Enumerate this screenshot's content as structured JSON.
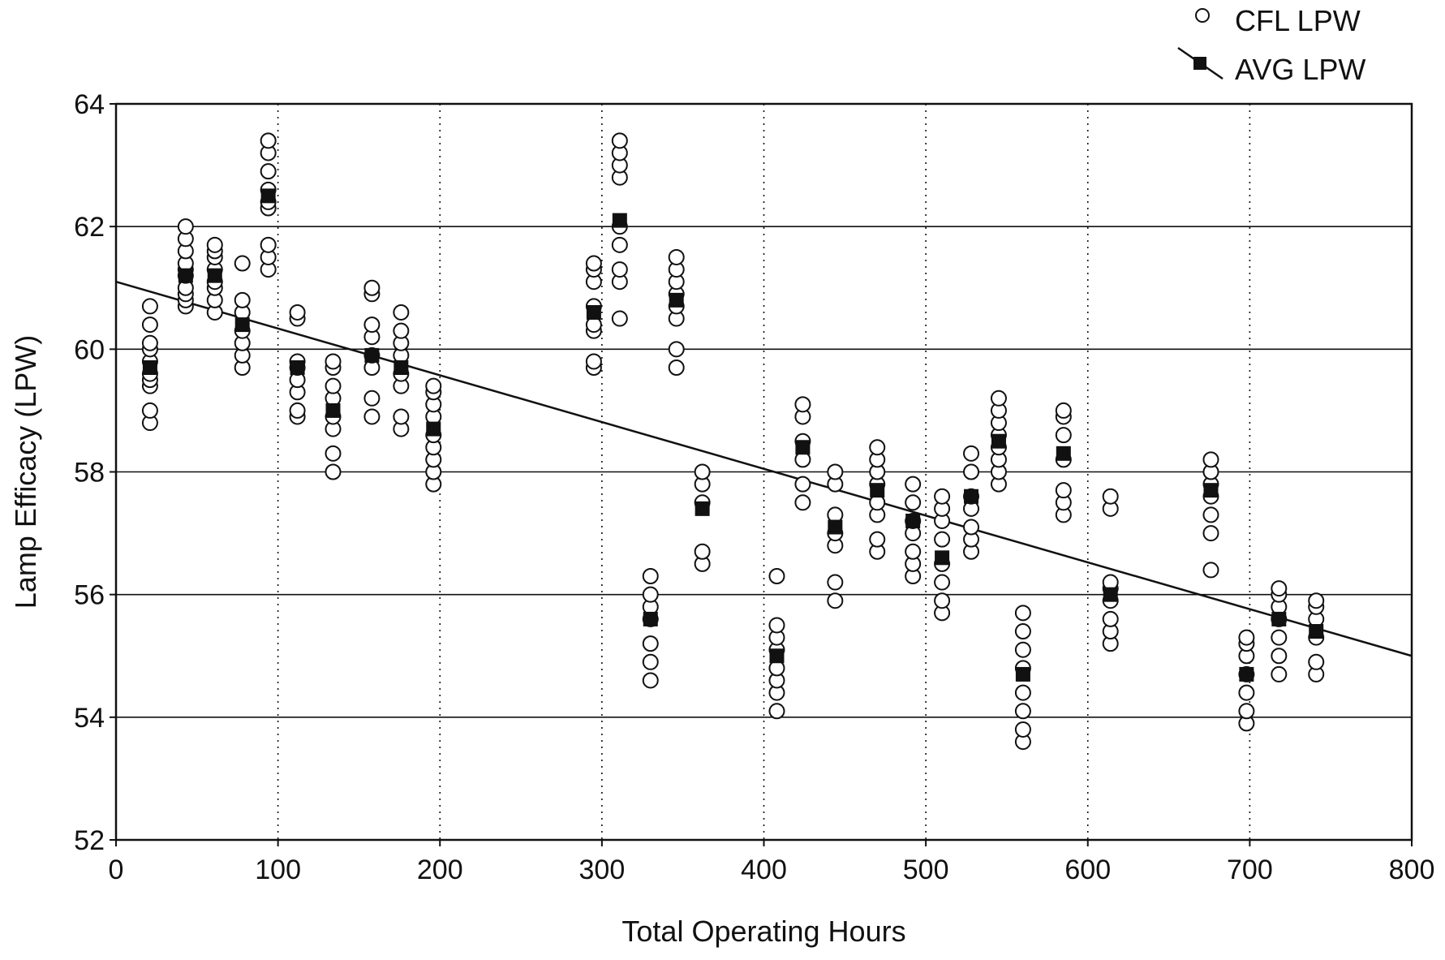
{
  "chart_data": {
    "type": "scatter",
    "title": "",
    "xlabel": "Total Operating Hours",
    "ylabel": "Lamp Efficacy (LPW)",
    "xlim": [
      0,
      800
    ],
    "ylim": [
      52,
      64
    ],
    "xticks": [
      0,
      100,
      200,
      300,
      400,
      500,
      600,
      700,
      800
    ],
    "yticks": [
      52,
      54,
      56,
      58,
      60,
      62,
      64
    ],
    "grid": {
      "x": "dotted",
      "y": "solid"
    },
    "legend_position": "top-right",
    "colors": {
      "points": "#111111",
      "fill": "#ffffff",
      "trend": "#111111"
    },
    "series": [
      {
        "name": "CFL LPW",
        "marker": "open-circle",
        "points": [
          [
            21,
            58.8
          ],
          [
            21,
            59.0
          ],
          [
            21,
            59.4
          ],
          [
            21,
            59.5
          ],
          [
            21,
            59.6
          ],
          [
            21,
            59.8
          ],
          [
            21,
            60.0
          ],
          [
            21,
            60.1
          ],
          [
            21,
            60.4
          ],
          [
            21,
            60.7
          ],
          [
            43,
            60.7
          ],
          [
            43,
            60.8
          ],
          [
            43,
            60.9
          ],
          [
            43,
            61.0
          ],
          [
            43,
            61.2
          ],
          [
            43,
            61.3
          ],
          [
            43,
            61.4
          ],
          [
            43,
            61.6
          ],
          [
            43,
            61.8
          ],
          [
            43,
            62.0
          ],
          [
            61,
            60.6
          ],
          [
            61,
            60.8
          ],
          [
            61,
            61.0
          ],
          [
            61,
            61.1
          ],
          [
            61,
            61.3
          ],
          [
            61,
            61.5
          ],
          [
            61,
            61.6
          ],
          [
            61,
            61.7
          ],
          [
            78,
            59.7
          ],
          [
            78,
            59.9
          ],
          [
            78,
            60.1
          ],
          [
            78,
            60.3
          ],
          [
            78,
            60.6
          ],
          [
            78,
            60.8
          ],
          [
            78,
            61.4
          ],
          [
            94,
            61.3
          ],
          [
            94,
            61.5
          ],
          [
            94,
            61.7
          ],
          [
            94,
            62.3
          ],
          [
            94,
            62.4
          ],
          [
            94,
            62.6
          ],
          [
            94,
            62.9
          ],
          [
            94,
            63.2
          ],
          [
            94,
            63.4
          ],
          [
            112,
            58.9
          ],
          [
            112,
            59.0
          ],
          [
            112,
            59.3
          ],
          [
            112,
            59.5
          ],
          [
            112,
            59.7
          ],
          [
            112,
            59.8
          ],
          [
            112,
            60.5
          ],
          [
            112,
            60.6
          ],
          [
            134,
            58.0
          ],
          [
            134,
            58.3
          ],
          [
            134,
            58.7
          ],
          [
            134,
            58.9
          ],
          [
            134,
            59.2
          ],
          [
            134,
            59.4
          ],
          [
            134,
            59.7
          ],
          [
            134,
            59.8
          ],
          [
            158,
            58.9
          ],
          [
            158,
            59.2
          ],
          [
            158,
            59.7
          ],
          [
            158,
            59.9
          ],
          [
            158,
            60.2
          ],
          [
            158,
            60.4
          ],
          [
            158,
            60.9
          ],
          [
            158,
            61.0
          ],
          [
            176,
            58.7
          ],
          [
            176,
            58.9
          ],
          [
            176,
            59.4
          ],
          [
            176,
            59.6
          ],
          [
            176,
            59.9
          ],
          [
            176,
            60.1
          ],
          [
            176,
            60.3
          ],
          [
            176,
            60.6
          ],
          [
            196,
            57.8
          ],
          [
            196,
            58.0
          ],
          [
            196,
            58.2
          ],
          [
            196,
            58.4
          ],
          [
            196,
            58.6
          ],
          [
            196,
            58.9
          ],
          [
            196,
            59.1
          ],
          [
            196,
            59.3
          ],
          [
            196,
            59.4
          ],
          [
            295,
            59.7
          ],
          [
            295,
            59.8
          ],
          [
            295,
            60.3
          ],
          [
            295,
            60.4
          ],
          [
            295,
            60.7
          ],
          [
            295,
            61.1
          ],
          [
            295,
            61.3
          ],
          [
            295,
            61.4
          ],
          [
            311,
            60.5
          ],
          [
            311,
            61.1
          ],
          [
            311,
            61.3
          ],
          [
            311,
            61.7
          ],
          [
            311,
            62.0
          ],
          [
            311,
            62.8
          ],
          [
            311,
            63.0
          ],
          [
            311,
            63.2
          ],
          [
            311,
            63.4
          ],
          [
            330,
            54.6
          ],
          [
            330,
            54.9
          ],
          [
            330,
            55.2
          ],
          [
            330,
            55.6
          ],
          [
            330,
            55.8
          ],
          [
            330,
            56.0
          ],
          [
            330,
            56.3
          ],
          [
            346,
            59.7
          ],
          [
            346,
            60.0
          ],
          [
            346,
            60.5
          ],
          [
            346,
            60.7
          ],
          [
            346,
            60.9
          ],
          [
            346,
            61.1
          ],
          [
            346,
            61.3
          ],
          [
            346,
            61.5
          ],
          [
            362,
            56.5
          ],
          [
            362,
            56.7
          ],
          [
            362,
            57.5
          ],
          [
            362,
            57.8
          ],
          [
            362,
            58.0
          ],
          [
            408,
            54.1
          ],
          [
            408,
            54.4
          ],
          [
            408,
            54.6
          ],
          [
            408,
            54.8
          ],
          [
            408,
            55.1
          ],
          [
            408,
            55.3
          ],
          [
            408,
            55.5
          ],
          [
            408,
            56.3
          ],
          [
            424,
            57.5
          ],
          [
            424,
            57.8
          ],
          [
            424,
            58.2
          ],
          [
            424,
            58.5
          ],
          [
            424,
            58.9
          ],
          [
            424,
            59.1
          ],
          [
            444,
            55.9
          ],
          [
            444,
            56.2
          ],
          [
            444,
            56.8
          ],
          [
            444,
            57.0
          ],
          [
            444,
            57.3
          ],
          [
            444,
            57.8
          ],
          [
            444,
            58.0
          ],
          [
            470,
            56.7
          ],
          [
            470,
            56.9
          ],
          [
            470,
            57.3
          ],
          [
            470,
            57.5
          ],
          [
            470,
            57.8
          ],
          [
            470,
            58.0
          ],
          [
            470,
            58.2
          ],
          [
            470,
            58.4
          ],
          [
            492,
            56.3
          ],
          [
            492,
            56.5
          ],
          [
            492,
            56.7
          ],
          [
            492,
            57.0
          ],
          [
            492,
            57.2
          ],
          [
            492,
            57.5
          ],
          [
            492,
            57.8
          ],
          [
            510,
            55.7
          ],
          [
            510,
            55.9
          ],
          [
            510,
            56.2
          ],
          [
            510,
            56.5
          ],
          [
            510,
            56.9
          ],
          [
            510,
            57.2
          ],
          [
            510,
            57.4
          ],
          [
            510,
            57.6
          ],
          [
            528,
            56.7
          ],
          [
            528,
            56.9
          ],
          [
            528,
            57.1
          ],
          [
            528,
            57.4
          ],
          [
            528,
            57.6
          ],
          [
            528,
            58.0
          ],
          [
            528,
            58.3
          ],
          [
            545,
            57.8
          ],
          [
            545,
            58.0
          ],
          [
            545,
            58.2
          ],
          [
            545,
            58.4
          ],
          [
            545,
            58.6
          ],
          [
            545,
            58.8
          ],
          [
            545,
            59.0
          ],
          [
            545,
            59.2
          ],
          [
            560,
            53.6
          ],
          [
            560,
            53.8
          ],
          [
            560,
            54.1
          ],
          [
            560,
            54.4
          ],
          [
            560,
            54.8
          ],
          [
            560,
            55.1
          ],
          [
            560,
            55.4
          ],
          [
            560,
            55.7
          ],
          [
            585,
            57.3
          ],
          [
            585,
            57.5
          ],
          [
            585,
            57.7
          ],
          [
            585,
            58.2
          ],
          [
            585,
            58.6
          ],
          [
            585,
            58.9
          ],
          [
            585,
            59.0
          ],
          [
            614,
            55.2
          ],
          [
            614,
            55.4
          ],
          [
            614,
            55.6
          ],
          [
            614,
            55.9
          ],
          [
            614,
            56.1
          ],
          [
            614,
            56.2
          ],
          [
            614,
            57.4
          ],
          [
            614,
            57.6
          ],
          [
            676,
            56.4
          ],
          [
            676,
            57.0
          ],
          [
            676,
            57.3
          ],
          [
            676,
            57.6
          ],
          [
            676,
            57.8
          ],
          [
            676,
            58.0
          ],
          [
            676,
            58.2
          ],
          [
            698,
            53.9
          ],
          [
            698,
            54.1
          ],
          [
            698,
            54.4
          ],
          [
            698,
            54.7
          ],
          [
            698,
            55.0
          ],
          [
            698,
            55.2
          ],
          [
            698,
            55.3
          ],
          [
            718,
            54.7
          ],
          [
            718,
            55.0
          ],
          [
            718,
            55.3
          ],
          [
            718,
            55.6
          ],
          [
            718,
            55.8
          ],
          [
            718,
            56.0
          ],
          [
            718,
            56.1
          ],
          [
            741,
            54.7
          ],
          [
            741,
            54.9
          ],
          [
            741,
            55.3
          ],
          [
            741,
            55.6
          ],
          [
            741,
            55.8
          ],
          [
            741,
            55.9
          ]
        ]
      },
      {
        "name": "AVG LPW",
        "marker": "filled-square",
        "points": [
          [
            21,
            59.7
          ],
          [
            43,
            61.2
          ],
          [
            61,
            61.2
          ],
          [
            78,
            60.4
          ],
          [
            94,
            62.5
          ],
          [
            112,
            59.7
          ],
          [
            134,
            59.0
          ],
          [
            158,
            59.9
          ],
          [
            176,
            59.7
          ],
          [
            196,
            58.7
          ],
          [
            295,
            60.6
          ],
          [
            311,
            62.1
          ],
          [
            330,
            55.6
          ],
          [
            346,
            60.8
          ],
          [
            362,
            57.4
          ],
          [
            408,
            55.0
          ],
          [
            424,
            58.4
          ],
          [
            444,
            57.1
          ],
          [
            470,
            57.7
          ],
          [
            492,
            57.2
          ],
          [
            510,
            56.6
          ],
          [
            528,
            57.6
          ],
          [
            545,
            58.5
          ],
          [
            560,
            54.7
          ],
          [
            585,
            58.3
          ],
          [
            614,
            56.0
          ],
          [
            676,
            57.7
          ],
          [
            698,
            54.7
          ],
          [
            718,
            55.6
          ],
          [
            741,
            55.4
          ]
        ]
      }
    ],
    "trend_line": {
      "x": [
        0,
        800
      ],
      "y": [
        61.1,
        55.0
      ]
    },
    "legend": [
      {
        "label": "CFL LPW",
        "marker": "open-circle"
      },
      {
        "label": "AVG LPW",
        "marker": "filled-square-with-line"
      }
    ]
  }
}
